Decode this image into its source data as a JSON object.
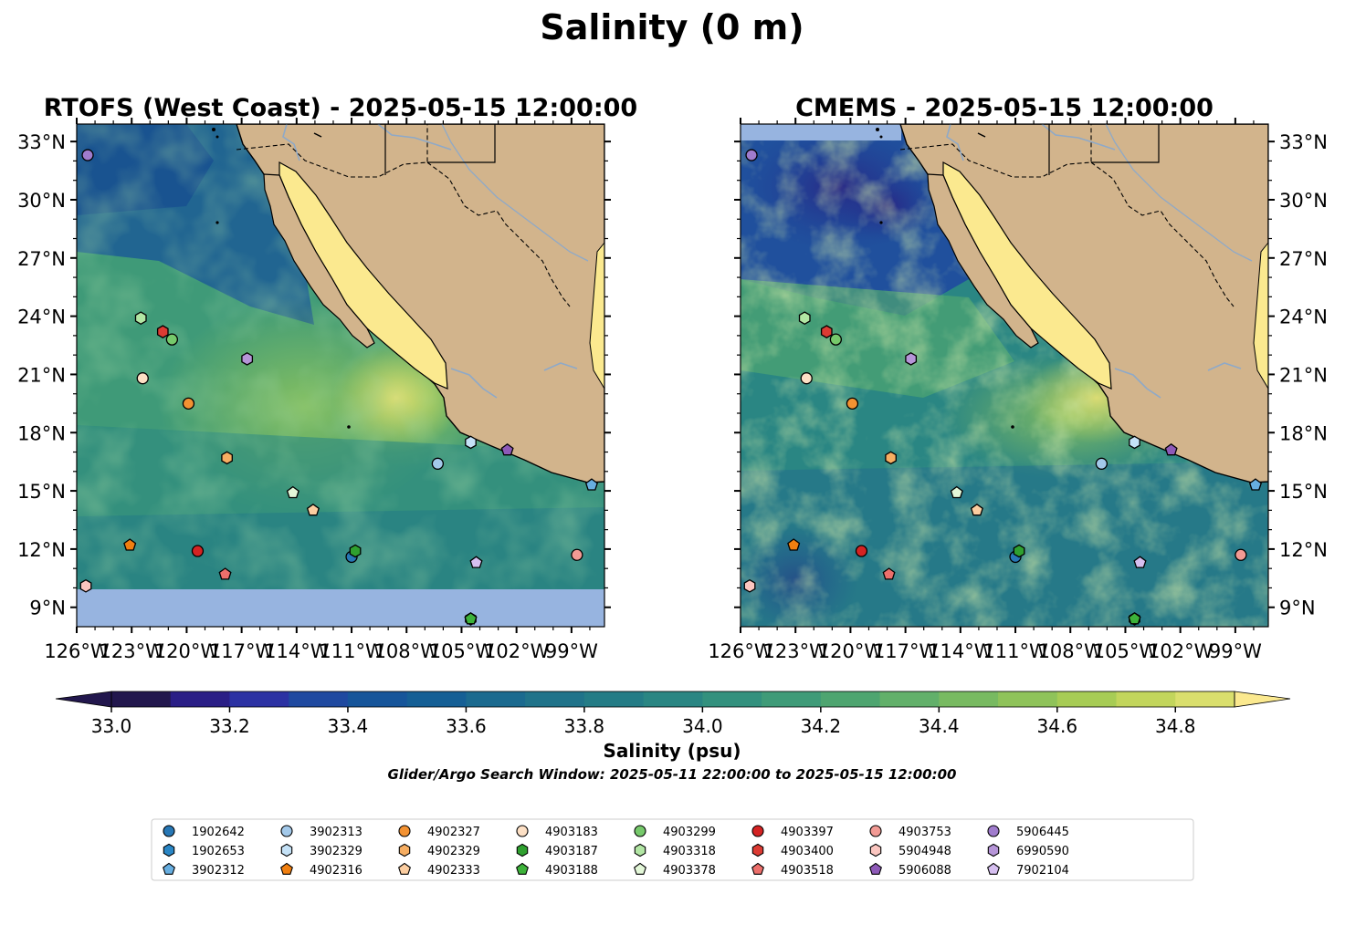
{
  "figure": {
    "title": "Salinity (0 m)",
    "colorbar_label": "Salinity (psu)",
    "colorbar_ticks": [
      "33.0",
      "33.2",
      "33.4",
      "33.6",
      "33.8",
      "34.0",
      "34.2",
      "34.4",
      "34.6",
      "34.8"
    ],
    "search_window_note": "Glider/Argo Search Window: 2025-05-11 22:00:00 to 2025-05-15 12:00:00"
  },
  "chart_data": [
    {
      "type": "heatmap",
      "title": "RTOFS (West Coast) - 2025-05-15 12:00:00",
      "variable": "Salinity (psu)",
      "colormap": "haline",
      "value_range": [
        33.0,
        34.9
      ],
      "x_ticks": [
        "126°W",
        "123°W",
        "120°W",
        "117°W",
        "114°W",
        "111°W",
        "108°W",
        "105°W",
        "102°W",
        "99°W"
      ],
      "y_ticks": [
        "33°N",
        "30°N",
        "27°N",
        "24°N",
        "21°N",
        "18°N",
        "15°N",
        "12°N",
        "9°N"
      ],
      "xlim": [
        -126,
        -97.2
      ],
      "ylim": [
        8,
        33.9
      ],
      "no_data_region": "south of 10°N",
      "land_color": "#d2b48c",
      "no_data_color": "#97b4e0"
    },
    {
      "type": "heatmap",
      "title": "CMEMS - 2025-05-15 12:00:00",
      "variable": "Salinity (psu)",
      "colormap": "haline",
      "value_range": [
        33.0,
        34.9
      ],
      "x_ticks": [
        "126°W",
        "123°W",
        "120°W",
        "117°W",
        "114°W",
        "111°W",
        "108°W",
        "105°W",
        "102°W",
        "99°W"
      ],
      "y_ticks": [
        "33°N",
        "30°N",
        "27°N",
        "24°N",
        "21°N",
        "18°N",
        "15°N",
        "12°N",
        "9°N"
      ],
      "xlim": [
        -126,
        -97.2
      ],
      "ylim": [
        8,
        33.9
      ],
      "no_data_region": "north of 33.1°N, west of 118.8°W",
      "land_color": "#d2b48c",
      "no_data_color": "#97b4e0"
    }
  ],
  "colorscale": [
    "#22174d",
    "#2a1e86",
    "#2c32a3",
    "#1f49a0",
    "#16559a",
    "#155f95",
    "#1b6a8f",
    "#20738a",
    "#247c86",
    "#2a8683",
    "#33917e",
    "#3f9b78",
    "#4ea570",
    "#62b06a",
    "#78ba61",
    "#8fc35a",
    "#a7cc55",
    "#c2d55c",
    "#dadf6d",
    "#fbe98f"
  ],
  "floats": [
    {
      "id": "1902642",
      "shape": "circle",
      "color": "#2777b5",
      "lon": -111.0,
      "lat": 11.6
    },
    {
      "id": "1902653",
      "shape": "hexagon",
      "color": "#2a86c5",
      "lon": -104.5,
      "lat": 8.4
    },
    {
      "id": "3902312",
      "shape": "pentagon",
      "color": "#67aee0",
      "lon": -97.9,
      "lat": 15.3
    },
    {
      "id": "3902313",
      "shape": "circle",
      "color": "#a3c9ea",
      "lon": -106.3,
      "lat": 16.4
    },
    {
      "id": "3902329",
      "shape": "hexagon",
      "color": "#c5e2f7",
      "lon": -104.5,
      "lat": 17.5
    },
    {
      "id": "4902316",
      "shape": "pentagon",
      "color": "#f07f10",
      "lon": -123.1,
      "lat": 12.2
    },
    {
      "id": "4902327",
      "shape": "circle",
      "color": "#f39232",
      "lon": -119.9,
      "lat": 19.5
    },
    {
      "id": "4902329",
      "shape": "hexagon",
      "color": "#f7ae62",
      "lon": -117.8,
      "lat": 16.7
    },
    {
      "id": "4902333",
      "shape": "pentagon",
      "color": "#fbcda0",
      "lon": -113.1,
      "lat": 14.0
    },
    {
      "id": "4903183",
      "shape": "circle",
      "color": "#fde0c5",
      "lon": -122.4,
      "lat": 20.8
    },
    {
      "id": "4903187",
      "shape": "hexagon",
      "color": "#2fa02f",
      "lon": -110.8,
      "lat": 11.9
    },
    {
      "id": "4903188",
      "shape": "pentagon",
      "color": "#3db23a",
      "lon": -104.5,
      "lat": 8.4
    },
    {
      "id": "4903299",
      "shape": "circle",
      "color": "#76c96b",
      "lon": -120.8,
      "lat": 22.8
    },
    {
      "id": "4903318",
      "shape": "hexagon",
      "color": "#b2e6a4",
      "lon": -122.5,
      "lat": 23.9
    },
    {
      "id": "4903378",
      "shape": "pentagon",
      "color": "#e3f7d8",
      "lon": -114.2,
      "lat": 14.9
    },
    {
      "id": "4903397",
      "shape": "circle",
      "color": "#d42323",
      "lon": -119.4,
      "lat": 11.9
    },
    {
      "id": "4903400",
      "shape": "hexagon",
      "color": "#dc3b33",
      "lon": -121.3,
      "lat": 23.2
    },
    {
      "id": "4903518",
      "shape": "pentagon",
      "color": "#ec6f6b",
      "lon": -117.9,
      "lat": 10.7
    },
    {
      "id": "4903753",
      "shape": "circle",
      "color": "#f29a94",
      "lon": -98.7,
      "lat": 11.7
    },
    {
      "id": "5904948",
      "shape": "hexagon",
      "color": "#fbc6c0",
      "lon": -125.5,
      "lat": 10.1
    },
    {
      "id": "5906088",
      "shape": "pentagon",
      "color": "#8e5ab8",
      "lon": -102.5,
      "lat": 17.1
    },
    {
      "id": "5906445",
      "shape": "circle",
      "color": "#a07ccd",
      "lon": -125.4,
      "lat": 32.3
    },
    {
      "id": "6990590",
      "shape": "hexagon",
      "color": "#b695d8",
      "lon": -116.7,
      "lat": 21.8
    },
    {
      "id": "7902104",
      "shape": "pentagon",
      "color": "#d6bff0",
      "lon": -104.2,
      "lat": 11.3
    }
  ]
}
